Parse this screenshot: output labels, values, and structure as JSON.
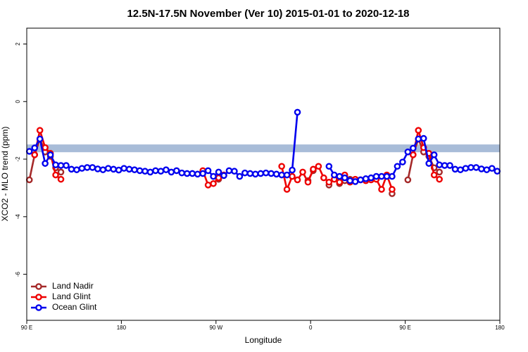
{
  "chart_data": {
    "type": "line",
    "title": "12.5N-17.5N November (Ver 10)   2015-01-01 to 2020-12-18",
    "x_label": "Longitude",
    "y_label": "XCO2 - MLO trend (ppm)",
    "xlim": [
      90,
      540
    ],
    "ylim": [
      -7.6,
      2.55
    ],
    "xticks": [
      {
        "value": 90,
        "label": "90 E"
      },
      {
        "value": 180,
        "label": "180"
      },
      {
        "value": 270,
        "label": "90 W"
      },
      {
        "value": 360,
        "label": "0"
      },
      {
        "value": 450,
        "label": "90 E"
      },
      {
        "value": 540,
        "label": "180"
      }
    ],
    "yticks": [
      2,
      0,
      -2,
      -4,
      -6
    ],
    "band": {
      "ylim": [
        -1.76,
        -1.49
      ],
      "color": "#a8bcd8"
    },
    "legend": "bottom-left",
    "x": [
      92.5,
      97.5,
      102.5,
      107.5,
      112.5,
      117.5,
      122.5,
      127.5,
      132.5,
      137.5,
      142.5,
      147.5,
      152.5,
      157.5,
      162.5,
      167.5,
      172.5,
      177.5,
      182.5,
      187.5,
      192.5,
      197.5,
      202.5,
      207.5,
      212.5,
      217.5,
      222.5,
      227.5,
      232.5,
      237.5,
      242.5,
      247.5,
      252.5,
      257.5,
      262.5,
      267.5,
      272.5,
      277.5,
      282.5,
      287.5,
      292.5,
      297.5,
      302.5,
      307.5,
      312.5,
      317.5,
      322.5,
      327.5,
      332.5,
      337.5,
      342.5,
      347.5,
      352.5,
      357.5,
      362.5,
      367.5,
      372.5,
      377.5,
      382.5,
      387.5,
      392.5,
      397.5,
      402.5,
      407.5,
      412.5,
      417.5,
      422.5,
      427.5,
      432.5,
      437.5,
      442.5,
      447.5,
      452.5,
      457.5,
      462.5,
      467.5,
      472.5,
      477.5,
      482.5,
      487.5,
      492.5,
      497.5,
      502.5,
      507.5,
      512.5,
      517.5,
      522.5,
      527.5,
      532.5,
      537.5
    ],
    "series": [
      {
        "name": "Land Nadir",
        "color": "#a52a2a",
        "values": [
          -2.72,
          -1.85,
          -1.3,
          -1.75,
          -1.9,
          -2.3,
          -2.45,
          null,
          null,
          null,
          null,
          null,
          null,
          null,
          null,
          null,
          null,
          null,
          null,
          null,
          null,
          null,
          null,
          null,
          null,
          null,
          null,
          null,
          null,
          null,
          null,
          null,
          null,
          null,
          null,
          null,
          -2.7,
          null,
          null,
          null,
          null,
          null,
          null,
          null,
          null,
          null,
          null,
          null,
          null,
          null,
          null,
          null,
          null,
          -2.75,
          -2.4,
          null,
          null,
          -2.9,
          null,
          -2.85,
          -2.75,
          -2.7,
          null,
          null,
          null,
          null,
          null,
          null,
          null,
          -3.2,
          null,
          null,
          -2.72,
          -1.85,
          -1.3,
          -1.75,
          -1.9,
          -2.3,
          -2.45,
          null,
          null,
          null,
          null,
          null,
          null,
          null,
          null,
          null,
          null,
          null
        ]
      },
      {
        "name": "Land Glint",
        "color": "#ee0000",
        "values": [
          null,
          -1.85,
          -1.0,
          -1.6,
          -1.8,
          -2.55,
          -2.7,
          null,
          null,
          null,
          null,
          null,
          null,
          null,
          null,
          null,
          null,
          null,
          null,
          null,
          null,
          null,
          null,
          null,
          null,
          null,
          null,
          null,
          null,
          null,
          null,
          null,
          null,
          -2.4,
          -2.9,
          -2.85,
          -2.65,
          -2.55,
          null,
          null,
          null,
          null,
          null,
          null,
          null,
          null,
          null,
          null,
          -2.25,
          -3.05,
          -2.6,
          -2.72,
          -2.45,
          -2.8,
          -2.35,
          -2.25,
          -2.65,
          -2.8,
          -2.7,
          -2.8,
          -2.55,
          -2.8,
          -2.7,
          -2.72,
          -2.75,
          -2.72,
          -2.7,
          -3.05,
          -2.55,
          -3.05,
          null,
          null,
          null,
          -1.85,
          -1.0,
          -1.6,
          -1.8,
          -2.55,
          -2.7,
          null,
          null,
          null,
          null,
          null,
          null,
          null,
          null,
          null,
          null,
          null
        ]
      },
      {
        "name": "Ocean Glint",
        "color": "#0000ee",
        "values": [
          -1.73,
          -1.61,
          -1.3,
          -2.15,
          -1.85,
          -2.2,
          -2.22,
          -2.22,
          -2.35,
          -2.37,
          -2.32,
          -2.29,
          -2.29,
          -2.34,
          -2.37,
          -2.32,
          -2.35,
          -2.38,
          -2.32,
          -2.35,
          -2.37,
          -2.4,
          -2.42,
          -2.45,
          -2.4,
          -2.42,
          -2.37,
          -2.45,
          -2.4,
          -2.48,
          -2.5,
          -2.5,
          -2.52,
          -2.5,
          -2.4,
          -2.6,
          -2.45,
          -2.57,
          -2.4,
          -2.42,
          -2.6,
          -2.48,
          -2.5,
          -2.52,
          -2.5,
          -2.48,
          -2.5,
          -2.52,
          -2.55,
          -2.55,
          -2.38,
          -0.37,
          null,
          null,
          null,
          null,
          null,
          -2.25,
          -2.55,
          -2.6,
          -2.65,
          -2.75,
          -2.78,
          -2.72,
          -2.68,
          -2.65,
          -2.6,
          -2.6,
          -2.6,
          -2.6,
          -2.25,
          -2.1,
          -1.75,
          -1.62,
          -1.3,
          -1.28,
          -2.15,
          -1.85,
          -2.2,
          -2.22,
          -2.22,
          -2.35,
          -2.37,
          -2.32,
          -2.29,
          -2.29,
          -2.34,
          -2.37,
          -2.32,
          -2.42
        ]
      }
    ]
  }
}
